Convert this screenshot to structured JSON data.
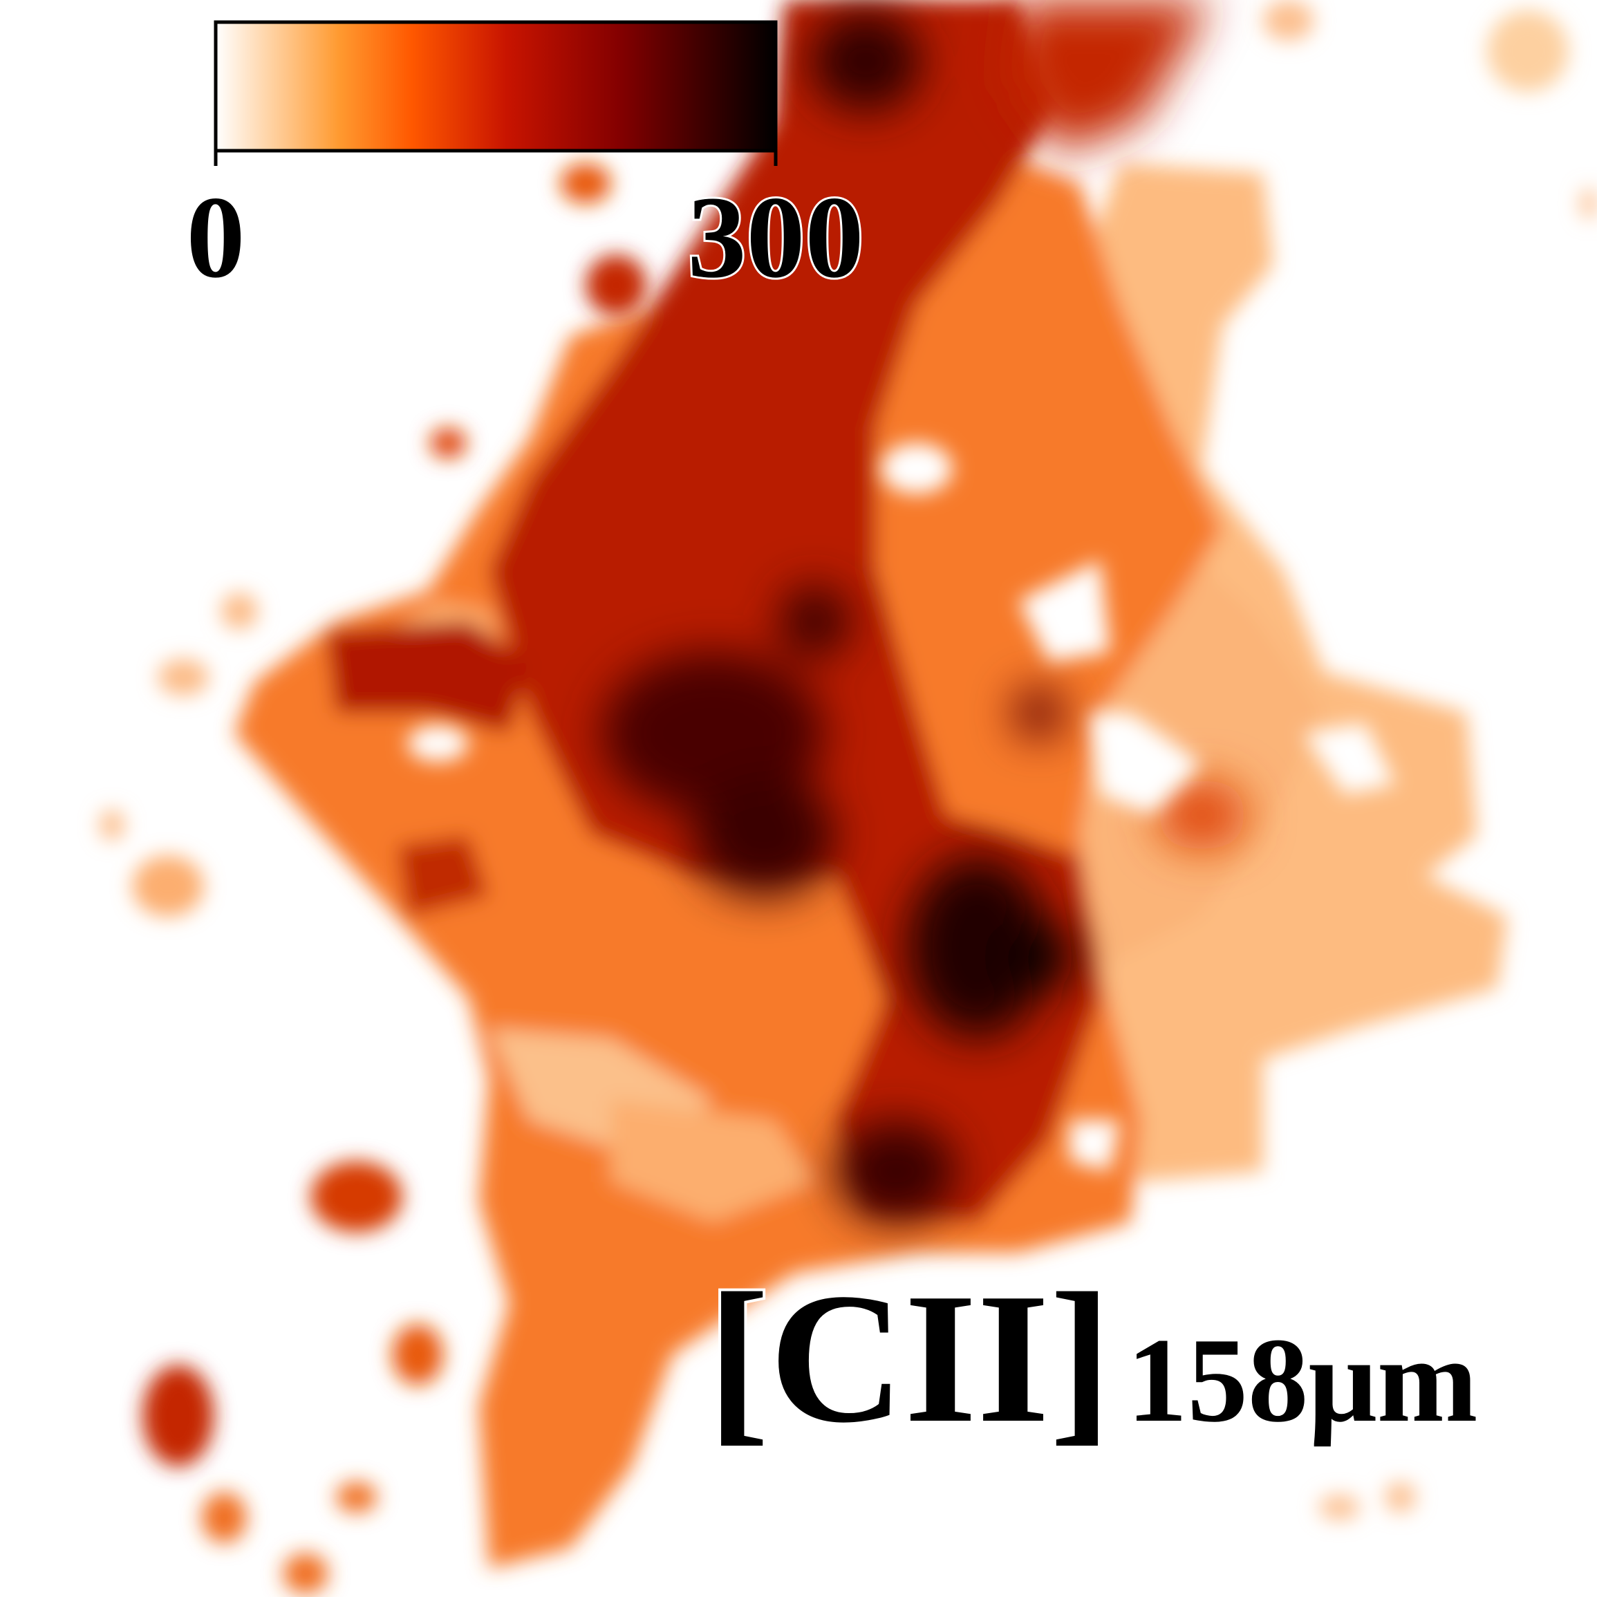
{
  "colorbar": {
    "lim": [
      0,
      300
    ],
    "ticks": [
      0,
      300
    ]
  },
  "label": {
    "main": "[CII]",
    "sub": "158μm"
  }
}
